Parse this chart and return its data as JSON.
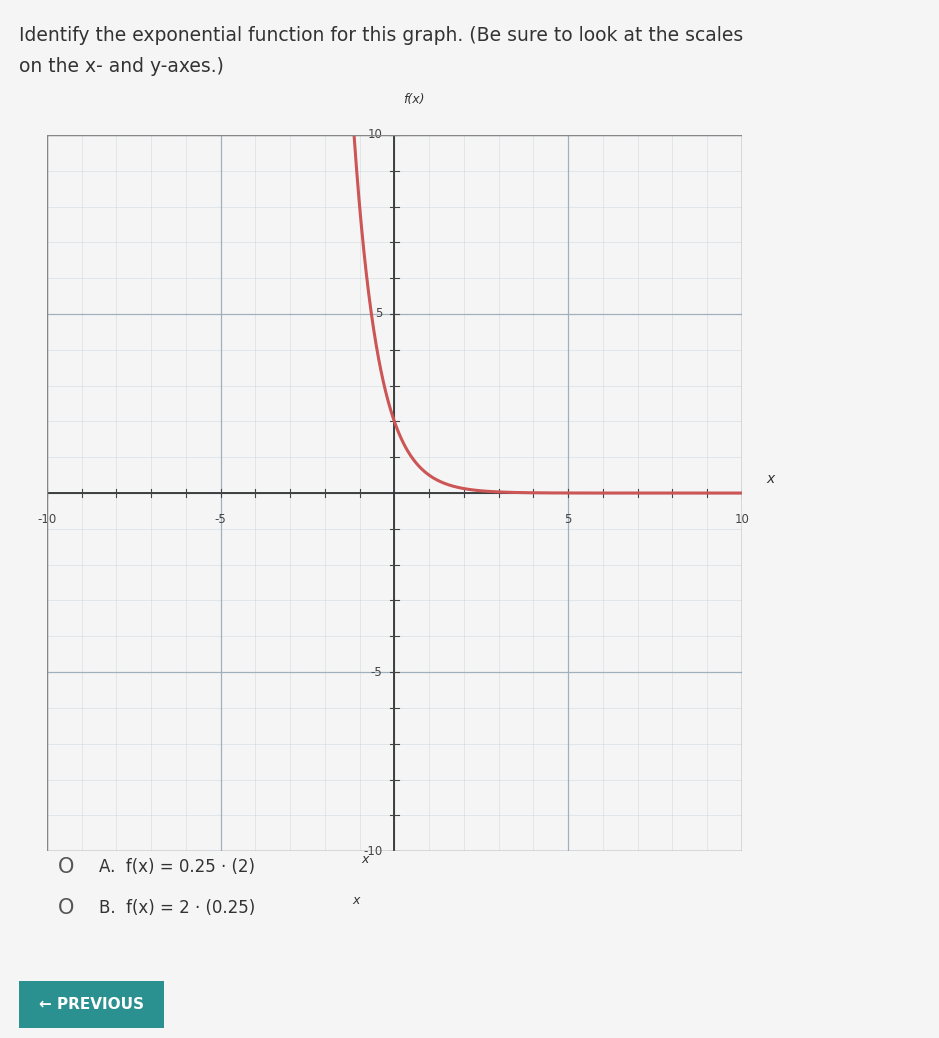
{
  "title_line1": "Identify the exponential function for this graph. (Be sure to look at the scales",
  "title_line2": "on the x- and y-axes.)",
  "title_fontsize": 13.5,
  "xlim": [
    -10,
    10
  ],
  "ylim": [
    -10,
    10
  ],
  "xlabel": "x",
  "ylabel": "f(x)",
  "grid_color_minor": "#c8d4dc",
  "grid_color_major": "#a0b0bc",
  "curve_color": "#cc5555",
  "curve_linewidth": 2.2,
  "label_a": "A.  f(x) = 0.25 · (2)",
  "label_b": "B.  f(x) = 2 · (0.25)",
  "bg_color": "#f0f0f0",
  "plot_bg_color": "#e8eef2",
  "outer_bg": "#e4e8ec",
  "button_color": "#2a9090",
  "button_text": "← PREVIOUS",
  "tick_label_color": "#444444",
  "axis_color": "#555555"
}
